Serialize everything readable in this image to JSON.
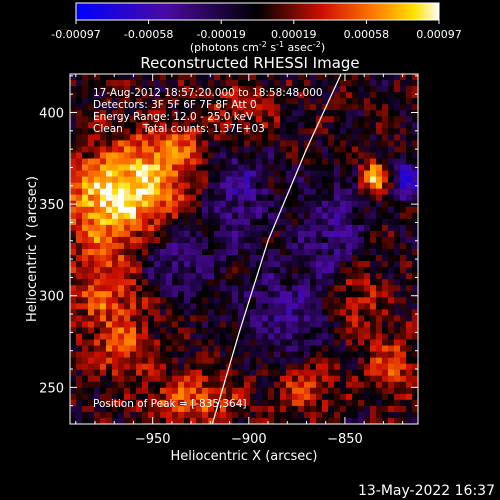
{
  "chart_data": {
    "type": "heatmap",
    "title": "Reconstructed RHESSI Image",
    "xlabel": "Heliocentric X (arcsec)",
    "ylabel": "Heliocentric Y (arcsec)",
    "xlim": [
      -993,
      -812
    ],
    "ylim": [
      230,
      421
    ],
    "x_ticks": [
      -950,
      -900,
      -850
    ],
    "y_ticks": [
      250,
      300,
      350,
      400
    ],
    "colorbar": {
      "ticks": [
        "-0.00097",
        "-0.00058",
        "-0.00019",
        "0.00019",
        "0.00058",
        "0.00097"
      ],
      "unit_label": "(photons cm",
      "unit_exp1": "-2",
      "unit_mid": " s",
      "unit_exp2": "-1",
      "unit_mid2": " asec",
      "unit_exp3": "-2",
      "unit_close": ")",
      "range": [
        -0.00097,
        0.00097
      ],
      "colormap": "rhessi: blue-purple-black-red-orange-yellow-white"
    },
    "annotations": [
      "17-Aug-2012 18:57:20.000 to 18:58:48.000",
      "Detectors: 3F 5F 6F 7F 8F  Att 0",
      "Energy Range: 12.0 - 25.0 keV",
      "Clean      Total counts: 1.37E+03"
    ],
    "peak_label": "Position of Peak = [-835,364]",
    "peak": {
      "x": -835,
      "y": 364
    },
    "limb_curve": [
      [
        -919,
        230
      ],
      [
        -905,
        280
      ],
      [
        -890,
        330
      ],
      [
        -870,
        380
      ],
      [
        -852,
        421
      ]
    ],
    "hot_regions": [
      {
        "x": -958,
        "y": 358,
        "sx": 22,
        "sy": 14,
        "amp": 0.75
      },
      {
        "x": -975,
        "y": 345,
        "sx": 18,
        "sy": 22,
        "amp": 0.6
      },
      {
        "x": -940,
        "y": 380,
        "sx": 18,
        "sy": 10,
        "amp": 0.55
      },
      {
        "x": -972,
        "y": 300,
        "sx": 14,
        "sy": 16,
        "amp": 0.55
      },
      {
        "x": -965,
        "y": 270,
        "sx": 12,
        "sy": 10,
        "amp": 0.5
      },
      {
        "x": -905,
        "y": 400,
        "sx": 14,
        "sy": 12,
        "amp": 0.45
      },
      {
        "x": -930,
        "y": 243,
        "sx": 18,
        "sy": 10,
        "amp": 0.6
      },
      {
        "x": -870,
        "y": 250,
        "sx": 12,
        "sy": 10,
        "amp": 0.45
      },
      {
        "x": -835,
        "y": 364,
        "sx": 5,
        "sy": 6,
        "amp": 1.0
      },
      {
        "x": -845,
        "y": 300,
        "sx": 10,
        "sy": 14,
        "amp": 0.45
      },
      {
        "x": -825,
        "y": 262,
        "sx": 10,
        "sy": 12,
        "amp": 0.5
      }
    ],
    "cold_regions": [
      {
        "x": -908,
        "y": 360,
        "sx": 14,
        "sy": 24,
        "amp": 0.55
      },
      {
        "x": -855,
        "y": 335,
        "sx": 12,
        "sy": 20,
        "amp": 0.5
      },
      {
        "x": -818,
        "y": 362,
        "sx": 5,
        "sy": 8,
        "amp": 0.9
      },
      {
        "x": -880,
        "y": 290,
        "sx": 16,
        "sy": 18,
        "amp": 0.45
      },
      {
        "x": -942,
        "y": 318,
        "sx": 14,
        "sy": 14,
        "amp": 0.45
      }
    ]
  },
  "footer": {
    "timestamp": "13-May-2022 16:37"
  }
}
